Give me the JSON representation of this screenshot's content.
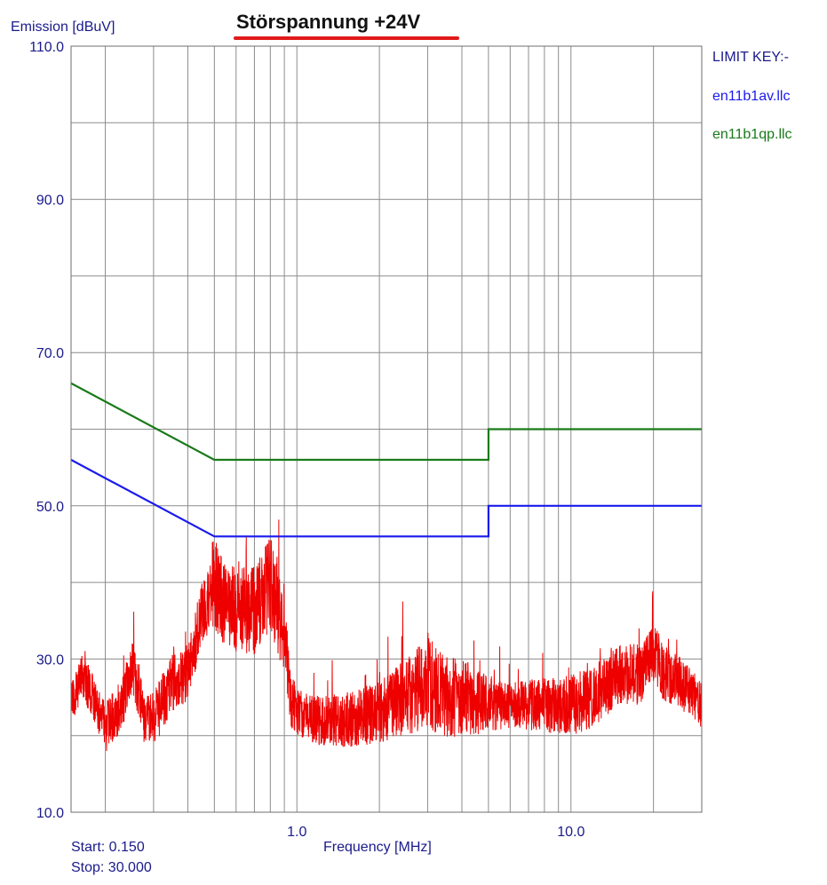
{
  "chart_data": {
    "type": "line",
    "title": "Störspannung +24V",
    "ylabel": "Emission [dBuV]",
    "xlabel": "Frequency [MHz]",
    "x_scale": "log",
    "xlim": [
      0.15,
      30.0
    ],
    "ylim": [
      10.0,
      110.0
    ],
    "y_ticks": [
      "110.0",
      "90.0",
      "70.0",
      "50.0",
      "30.0",
      "10.0"
    ],
    "x_ticks": [
      {
        "value": 1.0,
        "label": "1.0"
      },
      {
        "value": 10.0,
        "label": "10.0"
      }
    ],
    "grid": true,
    "start_label": "Start: 0.150",
    "stop_label": "Stop: 30.000",
    "legend": {
      "heading": "LIMIT KEY:-",
      "placement": "top-right",
      "items": [
        {
          "label": "en11b1av.llc",
          "color": "#1a1aee"
        },
        {
          "label": "en11b1qp.llc",
          "color": "#1a7a1a"
        }
      ]
    },
    "limit_lines": [
      {
        "key": "en11b1av.llc",
        "color": "#1a1aee",
        "points": [
          [
            0.15,
            56
          ],
          [
            0.5,
            46
          ],
          [
            5.0,
            46
          ],
          [
            5.0,
            50
          ],
          [
            30.0,
            50
          ]
        ]
      },
      {
        "key": "en11b1qp.llc",
        "color": "#1a7a1a",
        "points": [
          [
            0.15,
            66
          ],
          [
            0.5,
            56
          ],
          [
            5.0,
            56
          ],
          [
            5.0,
            60
          ],
          [
            30.0,
            60
          ]
        ]
      }
    ],
    "measurement": {
      "color": "#ee0000",
      "envelope": [
        [
          0.15,
          24
        ],
        [
          0.165,
          28
        ],
        [
          0.18,
          25
        ],
        [
          0.2,
          21
        ],
        [
          0.23,
          24
        ],
        [
          0.25,
          29
        ],
        [
          0.28,
          22
        ],
        [
          0.3,
          22
        ],
        [
          0.35,
          27
        ],
        [
          0.4,
          28
        ],
        [
          0.45,
          36
        ],
        [
          0.5,
          40
        ],
        [
          0.55,
          36
        ],
        [
          0.6,
          37
        ],
        [
          0.7,
          36
        ],
        [
          0.8,
          40
        ],
        [
          0.9,
          33
        ],
        [
          0.95,
          25
        ],
        [
          1.0,
          23
        ],
        [
          1.2,
          22
        ],
        [
          1.5,
          22
        ],
        [
          2.0,
          23
        ],
        [
          2.5,
          25
        ],
        [
          3.0,
          27
        ],
        [
          3.5,
          25
        ],
        [
          4.0,
          25
        ],
        [
          5.0,
          24
        ],
        [
          6.0,
          24
        ],
        [
          8.0,
          24
        ],
        [
          10.0,
          24
        ],
        [
          12.0,
          25
        ],
        [
          15.0,
          28
        ],
        [
          18.0,
          28
        ],
        [
          20.0,
          31
        ],
        [
          22.0,
          28
        ],
        [
          25.0,
          27
        ],
        [
          30.0,
          24
        ]
      ],
      "noise_amplitude": [
        [
          0.15,
          3
        ],
        [
          0.45,
          4
        ],
        [
          0.5,
          6
        ],
        [
          0.9,
          6
        ],
        [
          1.0,
          3
        ],
        [
          2.0,
          4
        ],
        [
          3.0,
          6
        ],
        [
          4.0,
          5
        ],
        [
          6.0,
          3
        ],
        [
          10.0,
          4
        ],
        [
          20.0,
          4
        ],
        [
          30.0,
          3
        ]
      ]
    }
  }
}
